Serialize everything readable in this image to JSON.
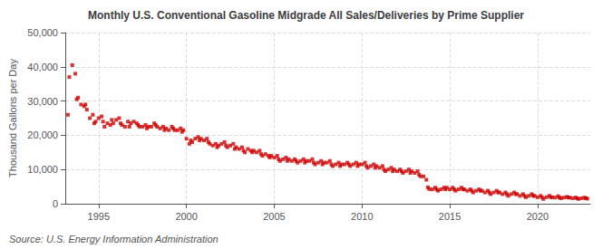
{
  "chart_data": {
    "type": "scatter",
    "title": "Monthly U.S. Conventional Gasoline Midgrade All Sales/Deliveries by Prime Supplier",
    "ylabel": "Thousand Gallons per Day",
    "annotations": [
      "Source: U.S. Energy Information Administration"
    ],
    "color": "#cc0000",
    "marker": "square",
    "grid": true,
    "xlim": [
      1993.1,
      2023.0
    ],
    "xticks": [
      1995,
      2000,
      2005,
      2010,
      2015,
      2020
    ],
    "ylim": [
      0,
      50000
    ],
    "yticks": [
      0,
      {
        "value": 10000,
        "label": "10,000"
      },
      {
        "value": 20000,
        "label": "20,000"
      },
      {
        "value": 30000,
        "label": "30,000"
      },
      {
        "value": 40000,
        "label": "40,000"
      },
      {
        "value": 50000,
        "label": "50,000"
      }
    ],
    "x": [
      1993.25,
      1993.33,
      1993.5,
      1993.67,
      1993.75,
      1993.83,
      1994.0,
      1994.17,
      1994.25,
      1994.33,
      1994.5,
      1994.67,
      1994.75,
      1994.83,
      1995.0,
      1995.17,
      1995.25,
      1995.33,
      1995.5,
      1995.67,
      1995.75,
      1995.83,
      1996.0,
      1996.17,
      1996.25,
      1996.33,
      1996.5,
      1996.67,
      1996.75,
      1996.83,
      1997.0,
      1997.17,
      1997.25,
      1997.33,
      1997.5,
      1997.67,
      1997.75,
      1997.83,
      1998.0,
      1998.17,
      1998.25,
      1998.33,
      1998.5,
      1998.67,
      1998.75,
      1998.83,
      1999.0,
      1999.17,
      1999.25,
      1999.33,
      1999.5,
      1999.67,
      1999.75,
      1999.83,
      2000.0,
      2000.17,
      2000.25,
      2000.33,
      2000.5,
      2000.67,
      2000.75,
      2000.83,
      2001.0,
      2001.17,
      2001.25,
      2001.33,
      2001.5,
      2001.67,
      2001.75,
      2001.83,
      2002.0,
      2002.17,
      2002.25,
      2002.33,
      2002.5,
      2002.67,
      2002.75,
      2002.83,
      2003.0,
      2003.17,
      2003.25,
      2003.33,
      2003.5,
      2003.67,
      2003.75,
      2003.83,
      2004.0,
      2004.17,
      2004.25,
      2004.33,
      2004.5,
      2004.67,
      2004.75,
      2004.83,
      2005.0,
      2005.17,
      2005.25,
      2005.33,
      2005.5,
      2005.67,
      2005.75,
      2005.83,
      2006.0,
      2006.17,
      2006.25,
      2006.33,
      2006.5,
      2006.67,
      2006.75,
      2006.83,
      2007.0,
      2007.17,
      2007.25,
      2007.33,
      2007.5,
      2007.67,
      2007.75,
      2007.83,
      2008.0,
      2008.17,
      2008.25,
      2008.33,
      2008.5,
      2008.67,
      2008.75,
      2008.83,
      2009.0,
      2009.17,
      2009.25,
      2009.33,
      2009.5,
      2009.67,
      2009.75,
      2009.83,
      2010.0,
      2010.17,
      2010.25,
      2010.33,
      2010.5,
      2010.67,
      2010.75,
      2010.83,
      2011.0,
      2011.17,
      2011.25,
      2011.33,
      2011.5,
      2011.67,
      2011.75,
      2011.83,
      2012.0,
      2012.17,
      2012.25,
      2012.33,
      2012.5,
      2012.67,
      2012.75,
      2012.83,
      2013.0,
      2013.17,
      2013.25,
      2013.33,
      2013.5,
      2013.67,
      2013.75,
      2013.83,
      2014.0,
      2014.17,
      2014.25,
      2014.33,
      2014.5,
      2014.67,
      2014.75,
      2014.83,
      2015.0,
      2015.17,
      2015.25,
      2015.33,
      2015.5,
      2015.67,
      2015.75,
      2015.83,
      2016.0,
      2016.17,
      2016.25,
      2016.33,
      2016.5,
      2016.67,
      2016.75,
      2016.83,
      2017.0,
      2017.17,
      2017.25,
      2017.33,
      2017.5,
      2017.67,
      2017.75,
      2017.83,
      2018.0,
      2018.17,
      2018.25,
      2018.33,
      2018.5,
      2018.67,
      2018.75,
      2018.83,
      2019.0,
      2019.17,
      2019.25,
      2019.33,
      2019.5,
      2019.67,
      2019.75,
      2019.83,
      2020.0,
      2020.17,
      2020.25,
      2020.33,
      2020.5,
      2020.67,
      2020.75,
      2020.83,
      2021.0,
      2021.17,
      2021.25,
      2021.33,
      2021.5,
      2021.67,
      2021.75,
      2021.83,
      2022.0,
      2022.17,
      2022.25,
      2022.33,
      2022.5,
      2022.67,
      2022.75,
      2022.83
    ],
    "values": [
      26000,
      37000,
      40500,
      38000,
      30500,
      31000,
      29000,
      28500,
      29000,
      27500,
      25000,
      26000,
      23500,
      24000,
      25000,
      25500,
      24000,
      22500,
      23500,
      23000,
      24500,
      23500,
      24500,
      25000,
      23500,
      23000,
      22500,
      24000,
      22500,
      23500,
      24000,
      23500,
      23000,
      22500,
      22500,
      23000,
      22000,
      22500,
      22500,
      23500,
      23000,
      22500,
      22000,
      22500,
      21500,
      22000,
      21500,
      22500,
      22000,
      21500,
      21500,
      22000,
      21000,
      21500,
      19000,
      17500,
      18500,
      18000,
      19000,
      19500,
      18500,
      19000,
      18500,
      19000,
      18000,
      17500,
      17000,
      17500,
      16500,
      17000,
      17500,
      18000,
      17000,
      16500,
      17000,
      17500,
      16000,
      16500,
      16000,
      16500,
      15500,
      15000,
      16000,
      15500,
      15000,
      15500,
      15000,
      15500,
      14500,
      14000,
      14500,
      14000,
      13500,
      14000,
      13500,
      14000,
      13000,
      12500,
      13000,
      13500,
      12500,
      13000,
      12500,
      13000,
      12500,
      12000,
      12500,
      13000,
      12000,
      12500,
      12500,
      13000,
      12000,
      11500,
      12000,
      12500,
      11500,
      12000,
      12000,
      12500,
      11500,
      11000,
      11500,
      12000,
      11000,
      11500,
      11500,
      12000,
      11500,
      11000,
      11500,
      12000,
      11000,
      11500,
      11500,
      12000,
      11000,
      10500,
      11000,
      11500,
      10500,
      11000,
      10500,
      11000,
      10000,
      9500,
      10000,
      10500,
      9500,
      10000,
      9500,
      10000,
      9500,
      9000,
      9500,
      10000,
      9000,
      9500,
      9000,
      9500,
      8500,
      8000,
      8000,
      7000,
      4800,
      4300,
      4200,
      4700,
      4200,
      3800,
      4200,
      4700,
      4200,
      4700,
      4200,
      4700,
      4200,
      3800,
      4200,
      4700,
      4200,
      4200,
      3800,
      4200,
      3800,
      3300,
      3800,
      4200,
      3800,
      3800,
      3300,
      3800,
      3300,
      2800,
      3300,
      3800,
      3300,
      3300,
      2800,
      3300,
      2800,
      2300,
      2800,
      3300,
      2800,
      2800,
      2300,
      2800,
      2300,
      1900,
      2300,
      2800,
      2300,
      2300,
      1900,
      2300,
      1900,
      1400,
      1900,
      2300,
      1900,
      1900,
      1800,
      2200,
      1800,
      1600,
      1800,
      2000,
      1800,
      1800,
      1600,
      1800,
      1600,
      1400,
      1600,
      1800,
      1600,
      1500
    ]
  }
}
